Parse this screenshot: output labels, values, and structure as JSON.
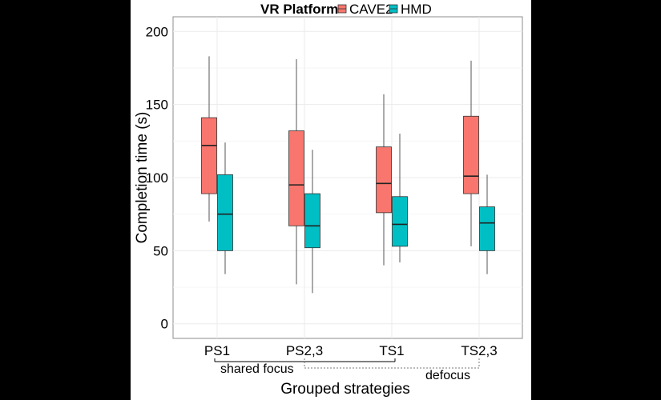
{
  "chart_data": {
    "type": "box",
    "legend": {
      "title": "VR Platform",
      "position": "top"
    },
    "xlabel": "Grouped strategies",
    "ylabel": "Completion time (s)",
    "ylim": [
      -10,
      210
    ],
    "yticks": [
      0,
      50,
      100,
      150,
      200
    ],
    "categories": [
      "PS1",
      "PS2,3",
      "TS1",
      "TS2,3"
    ],
    "series": [
      {
        "name": "CAVE2",
        "color": "#F8766D",
        "boxes": [
          {
            "min": 70,
            "q1": 89,
            "median": 122,
            "q3": 141,
            "max": 183
          },
          {
            "min": 27,
            "q1": 67,
            "median": 95,
            "q3": 132,
            "max": 181
          },
          {
            "min": 40,
            "q1": 76,
            "median": 96,
            "q3": 121,
            "max": 157
          },
          {
            "min": 53,
            "q1": 89,
            "median": 101,
            "q3": 142,
            "max": 180
          }
        ]
      },
      {
        "name": "HMD",
        "color": "#00BFC4",
        "boxes": [
          {
            "min": 34,
            "q1": 50,
            "median": 75,
            "q3": 102,
            "max": 124
          },
          {
            "min": 21,
            "q1": 52,
            "median": 67,
            "q3": 89,
            "max": 119
          },
          {
            "min": 42,
            "q1": 53,
            "median": 68,
            "q3": 87,
            "max": 130
          },
          {
            "min": 34,
            "q1": 50,
            "median": 69,
            "q3": 80,
            "max": 102
          }
        ]
      }
    ],
    "grid": true,
    "annotations": [
      {
        "label": "shared focus",
        "groups": [
          "PS1",
          "TS1"
        ],
        "line": "solid"
      },
      {
        "label": "defocus",
        "groups": [
          "PS2,3",
          "TS2,3"
        ],
        "line": "dotted"
      }
    ]
  }
}
